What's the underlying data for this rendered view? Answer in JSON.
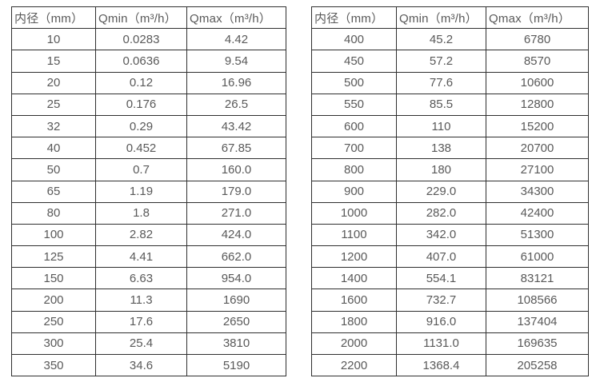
{
  "colors": {
    "background": "#ffffff",
    "border": "#2f2f2f",
    "text": "#595959"
  },
  "tables": [
    {
      "name": "diameter-flow-table-small",
      "headers": [
        "内径（mm）",
        "Qmin（m³/h）",
        "Qmax（m³/h）"
      ],
      "rows": [
        [
          "10",
          "0.0283",
          "4.42"
        ],
        [
          "15",
          "0.0636",
          "9.54"
        ],
        [
          "20",
          "0.12",
          "16.96"
        ],
        [
          "25",
          "0.176",
          "26.5"
        ],
        [
          "32",
          "0.29",
          "43.42"
        ],
        [
          "40",
          "0.452",
          "67.85"
        ],
        [
          "50",
          "0.7",
          "160.0"
        ],
        [
          "65",
          "1.19",
          "179.0"
        ],
        [
          "80",
          "1.8",
          "271.0"
        ],
        [
          "100",
          "2.82",
          "424.0"
        ],
        [
          "125",
          "4.41",
          "662.0"
        ],
        [
          "150",
          "6.63",
          "954.0"
        ],
        [
          "200",
          "11.3",
          "1690"
        ],
        [
          "250",
          "17.6",
          "2650"
        ],
        [
          "300",
          "25.4",
          "3810"
        ],
        [
          "350",
          "34.6",
          "5190"
        ]
      ]
    },
    {
      "name": "diameter-flow-table-large",
      "headers": [
        "内径（mm）",
        "Qmin（m³/h）",
        "Qmax（m³/h）"
      ],
      "rows": [
        [
          "400",
          "45.2",
          "6780"
        ],
        [
          "450",
          "57.2",
          "8570"
        ],
        [
          "500",
          "77.6",
          "10600"
        ],
        [
          "550",
          "85.5",
          "12800"
        ],
        [
          "600",
          "110",
          "15200"
        ],
        [
          "700",
          "138",
          "20700"
        ],
        [
          "800",
          "180",
          "27100"
        ],
        [
          "900",
          "229.0",
          "34300"
        ],
        [
          "1000",
          "282.0",
          "42400"
        ],
        [
          "1100",
          "342.0",
          "51300"
        ],
        [
          "1200",
          "407.0",
          "61000"
        ],
        [
          "1400",
          "554.1",
          "83121"
        ],
        [
          "1600",
          "732.7",
          "108566"
        ],
        [
          "1800",
          "916.0",
          "137404"
        ],
        [
          "2000",
          "1131.0",
          "169635"
        ],
        [
          "2200",
          "1368.4",
          "205258"
        ]
      ]
    }
  ]
}
